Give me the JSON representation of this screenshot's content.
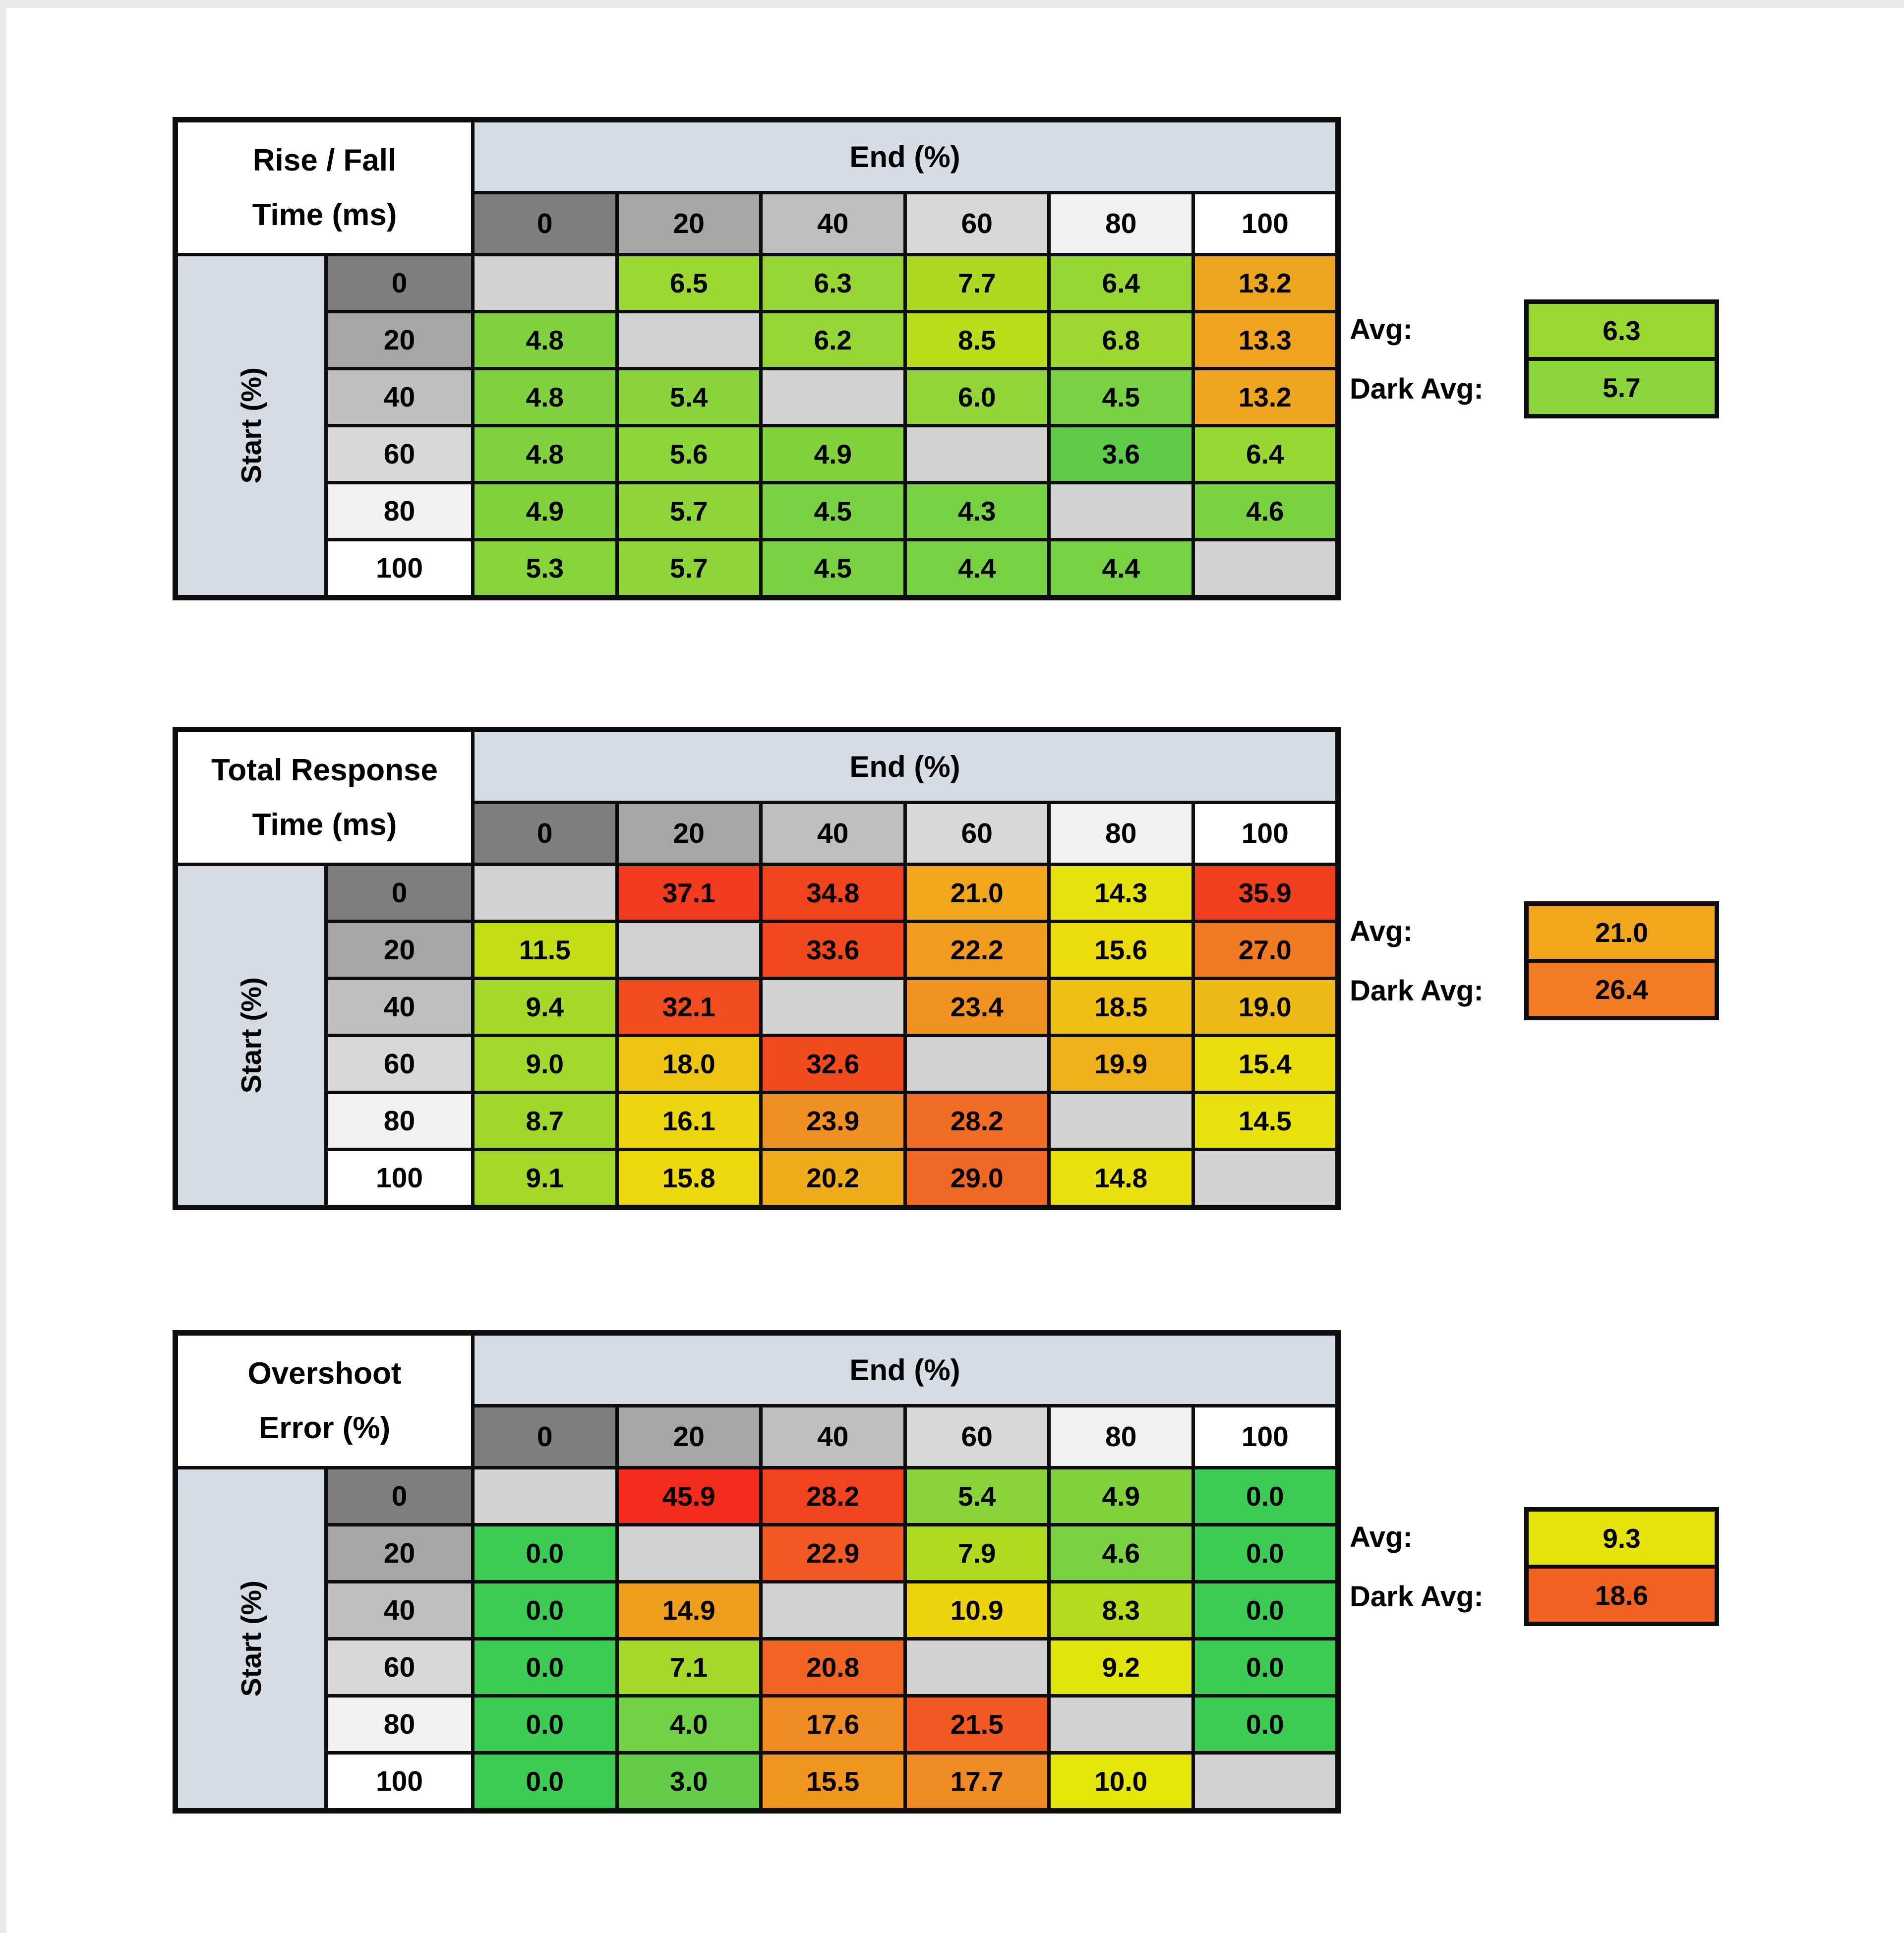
{
  "page": {
    "background": "#ffffff",
    "edge_strip_color": "#e9e9e9",
    "grid_line_color": "#0d0d0d",
    "blank_cell_color": "#d2d2d2",
    "axis_band_color": "#d6dce4",
    "header_shades": [
      "#7f7f7f",
      "#a6a6a6",
      "#bfbfbf",
      "#d8d8d8",
      "#f1f1f1",
      "#ffffff"
    ]
  },
  "chart_data": [
    {
      "type": "heatmap",
      "title_line1": "Rise / Fall",
      "title_line2": "Time (ms)",
      "col_axis_label": "End (%)",
      "row_axis_label": "Start (%)",
      "columns": [
        "0",
        "20",
        "40",
        "60",
        "80",
        "100"
      ],
      "rows": [
        "0",
        "20",
        "40",
        "60",
        "80",
        "100"
      ],
      "values": [
        [
          null,
          "6.5",
          "6.3",
          "7.7",
          "6.4",
          "13.2"
        ],
        [
          "4.8",
          null,
          "6.2",
          "8.5",
          "6.8",
          "13.3"
        ],
        [
          "4.8",
          "5.4",
          null,
          "6.0",
          "4.5",
          "13.2"
        ],
        [
          "4.8",
          "5.6",
          "4.9",
          null,
          "3.6",
          "6.4"
        ],
        [
          "4.9",
          "5.7",
          "4.5",
          "4.3",
          null,
          "4.6"
        ],
        [
          "5.3",
          "5.7",
          "4.5",
          "4.4",
          "4.4",
          null
        ]
      ],
      "colors": [
        [
          null,
          "#9cd732",
          "#97d634",
          "#acd922",
          "#98d634",
          "#eea51f"
        ],
        [
          "#80d23e",
          null,
          "#96d635",
          "#b9dc1b",
          "#9dd730",
          "#eea41f"
        ],
        [
          "#80d23e",
          "#89d43b",
          null,
          "#93d537",
          "#7ad141",
          "#eea51f"
        ],
        [
          "#80d23e",
          "#8bd43a",
          "#81d23d",
          null,
          "#60cb4b",
          "#98d634"
        ],
        [
          "#81d23d",
          "#8dd439",
          "#7ad141",
          "#76d143",
          null,
          "#7bd140"
        ],
        [
          "#87d33c",
          "#8dd439",
          "#7ad141",
          "#78d142",
          "#78d142",
          null
        ]
      ],
      "avg_label": "Avg:",
      "avg_value": "6.3",
      "avg_color": "#9cd72f",
      "dark_avg_label": "Dark Avg:",
      "dark_avg_value": "5.7",
      "dark_avg_color": "#8bd43b"
    },
    {
      "type": "heatmap",
      "title_line1": "Total Response",
      "title_line2": "Time (ms)",
      "col_axis_label": "End (%)",
      "row_axis_label": "Start (%)",
      "columns": [
        "0",
        "20",
        "40",
        "60",
        "80",
        "100"
      ],
      "rows": [
        "0",
        "20",
        "40",
        "60",
        "80",
        "100"
      ],
      "values": [
        [
          null,
          "37.1",
          "34.8",
          "21.0",
          "14.3",
          "35.9"
        ],
        [
          "11.5",
          null,
          "33.6",
          "22.2",
          "15.6",
          "27.0"
        ],
        [
          "9.4",
          "32.1",
          null,
          "23.4",
          "18.5",
          "19.0"
        ],
        [
          "9.0",
          "18.0",
          "32.6",
          null,
          "19.9",
          "15.4"
        ],
        [
          "8.7",
          "16.1",
          "23.9",
          "28.2",
          null,
          "14.5"
        ],
        [
          "9.1",
          "15.8",
          "20.2",
          "29.0",
          "14.8",
          null
        ]
      ],
      "colors": [
        [
          null,
          "#f23a1e",
          "#f2431f",
          "#f0a71c",
          "#e7e30f",
          "#f23f1f"
        ],
        [
          "#c3dd17",
          null,
          "#f2471f",
          "#f09a20",
          "#ecdc0d",
          "#f17a25"
        ],
        [
          "#a6d829",
          "#f24d20",
          null,
          "#f09321",
          "#efc014",
          "#efba17"
        ],
        [
          "#a2d82b",
          "#efc513",
          "#f24b20",
          null,
          "#f0b01a",
          "#ebdd0c"
        ],
        [
          "#9fd72d",
          "#eed60e",
          "#f08f22",
          "#f16d26",
          null,
          "#e8e20f"
        ],
        [
          "#a3d82b",
          "#edd90d",
          "#f0ad1b",
          "#f16825",
          "#e9e10e",
          null
        ]
      ],
      "avg_label": "Avg:",
      "avg_value": "21.0",
      "avg_color": "#f0a71c",
      "dark_avg_label": "Dark Avg:",
      "dark_avg_value": "26.4",
      "dark_avg_color": "#f17c24"
    },
    {
      "type": "heatmap",
      "title_line1": "Overshoot",
      "title_line2": "Error (%)",
      "col_axis_label": "End (%)",
      "row_axis_label": "Start (%)",
      "columns": [
        "0",
        "20",
        "40",
        "60",
        "80",
        "100"
      ],
      "rows": [
        "0",
        "20",
        "40",
        "60",
        "80",
        "100"
      ],
      "values": [
        [
          null,
          "45.9",
          "28.2",
          "5.4",
          "4.9",
          "0.0"
        ],
        [
          "0.0",
          null,
          "22.9",
          "7.9",
          "4.6",
          "0.0"
        ],
        [
          "0.0",
          "14.9",
          null,
          "10.9",
          "8.3",
          "0.0"
        ],
        [
          "0.0",
          "7.1",
          "20.8",
          null,
          "9.2",
          "0.0"
        ],
        [
          "0.0",
          "4.0",
          "17.6",
          "21.5",
          null,
          "0.0"
        ],
        [
          "0.0",
          "3.0",
          "15.5",
          "17.7",
          "10.0",
          null
        ]
      ],
      "colors": [
        [
          null,
          "#f22b1d",
          "#f24320",
          "#89d43b",
          "#81d23d",
          "#3ccb54"
        ],
        [
          "#3ccb54",
          null,
          "#f15922",
          "#afda1f",
          "#7bd140",
          "#3ccb54"
        ],
        [
          "#3ccb54",
          "#f0a01e",
          null,
          "#edd40c",
          "#b6db1c",
          "#3ccb54"
        ],
        [
          "#3ccb54",
          "#a4d829",
          "#f16423",
          null,
          "#e0e50a",
          "#3ccb54"
        ],
        [
          "#3ccb54",
          "#72d045",
          "#f08b22",
          "#f15922",
          null,
          "#3ccb54"
        ],
        [
          "#3ccb54",
          "#63cc49",
          "#f0961f",
          "#f08a22",
          "#e5e609",
          null
        ]
      ],
      "avg_label": "Avg:",
      "avg_value": "9.3",
      "avg_color": "#e5e40c",
      "dark_avg_label": "Dark Avg:",
      "dark_avg_value": "18.6",
      "dark_avg_color": "#f06220"
    }
  ]
}
